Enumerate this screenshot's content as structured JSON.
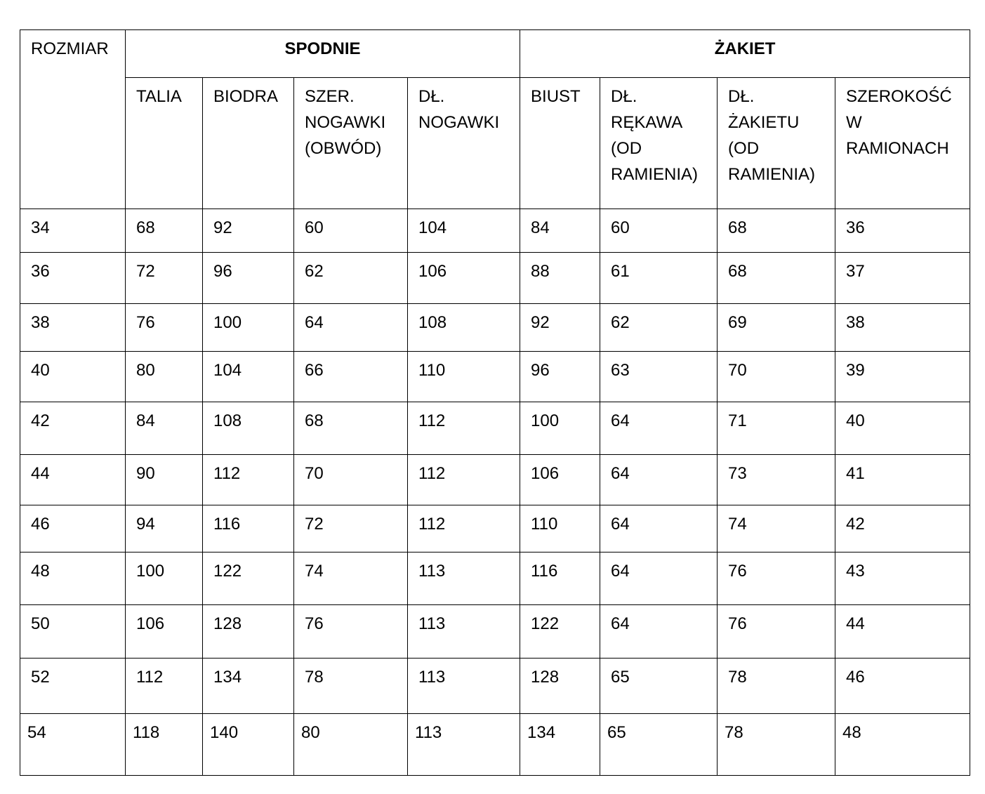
{
  "table": {
    "size_header": "ROZMIAR",
    "groups": [
      {
        "label": "SPODNIE",
        "columns": [
          "TALIA",
          "BIODRA",
          "SZER.\nNOGAWKI\n(OBWÓD)",
          "DŁ.\nNOGAWKI"
        ]
      },
      {
        "label": "ŻAKIET",
        "columns": [
          "BIUST",
          "DŁ.\nRĘKAWA\n(OD\nRAMIENIA)",
          "DŁ.\nŻAKIETU\n(OD\nRAMIENIA)",
          "SZEROKOŚĆ\nW\nRAMIONACH"
        ]
      }
    ],
    "rows": [
      [
        "34",
        "68",
        "92",
        "60",
        "104",
        "84",
        "60",
        "68",
        "36"
      ],
      [
        "36",
        "72",
        "96",
        "62",
        "106",
        "88",
        "61",
        "68",
        "37"
      ],
      [
        "38",
        "76",
        "100",
        "64",
        "108",
        "92",
        "62",
        "69",
        "38"
      ],
      [
        "40",
        "80",
        "104",
        "66",
        "110",
        "96",
        "63",
        "70",
        "39"
      ],
      [
        "42",
        "84",
        "108",
        "68",
        "112",
        "100",
        "64",
        "71",
        "40"
      ],
      [
        "44",
        "90",
        "112",
        "70",
        "112",
        "106",
        "64",
        "73",
        "41"
      ],
      [
        "46",
        "94",
        "116",
        "72",
        "112",
        "110",
        "64",
        "74",
        "42"
      ],
      [
        "48",
        "100",
        "122",
        "74",
        "113",
        "116",
        "64",
        "76",
        "43"
      ],
      [
        "50",
        "106",
        "128",
        "76",
        "113",
        "122",
        "64",
        "76",
        "44"
      ],
      [
        "52",
        "112",
        "134",
        "78",
        "113",
        "128",
        "65",
        "78",
        "46"
      ],
      [
        "54",
        "118",
        "140",
        "80",
        "113",
        "134",
        "65",
        "78",
        "48"
      ]
    ]
  }
}
